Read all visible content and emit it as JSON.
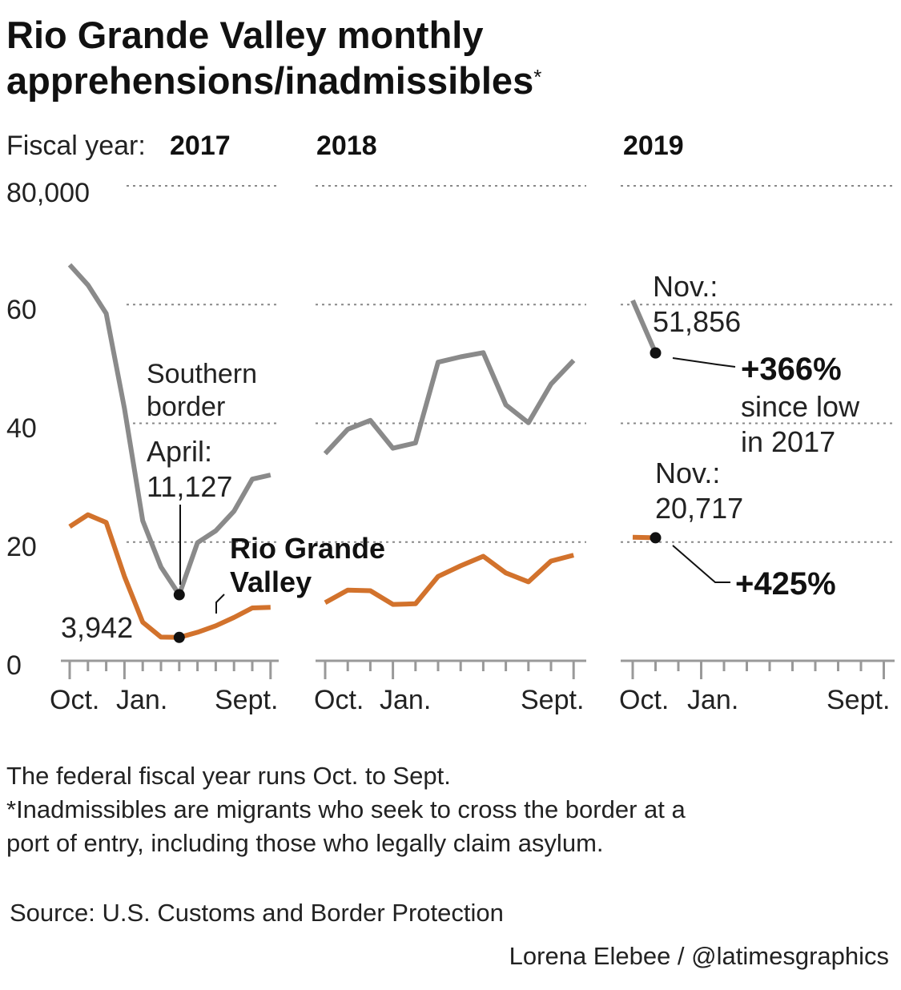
{
  "title": {
    "line1": "Rio Grande Valley monthly",
    "line2": "apprehensions/inadmissibles",
    "asterisk": "*"
  },
  "fiscal_year_label": "Fiscal year:",
  "chart_data": {
    "type": "line",
    "title": "Rio Grande Valley monthly apprehensions/inadmissibles",
    "ylim": [
      0,
      80000
    ],
    "y_ticks": [
      "80,000",
      "60",
      "40",
      "20",
      "0"
    ],
    "y_tick_values": [
      80000,
      60000,
      40000,
      20000,
      0
    ],
    "grid": true,
    "colors": {
      "southern_border": "#8a8a8a",
      "rio_grande_valley": "#d2722c",
      "dots": "#111111"
    },
    "panels": [
      {
        "year": "2017",
        "x_labels": [
          "Oct.",
          "Jan.",
          "Sept."
        ],
        "months": 12,
        "series": [
          {
            "name": "Southern border",
            "values": [
              66700,
              63300,
              58500,
              42500,
              23600,
              15800,
              11127,
              19900,
              21900,
              25200,
              30600,
              31300
            ]
          },
          {
            "name": "Rio Grande Valley",
            "values": [
              22600,
              24600,
              23300,
              14200,
              6500,
              4000,
              3942,
              4800,
              5900,
              7300,
              8900,
              9000
            ]
          }
        ]
      },
      {
        "year": "2018",
        "x_labels": [
          "Oct.",
          "Jan.",
          "Sept."
        ],
        "months": 12,
        "series": [
          {
            "name": "Southern border",
            "values": [
              34900,
              39000,
              40500,
              35800,
              36700,
              50300,
              51200,
              51900,
              43100,
              40100,
              46600,
              50600
            ]
          },
          {
            "name": "Rio Grande Valley",
            "values": [
              9800,
              11900,
              11800,
              9500,
              9600,
              14200,
              16000,
              17600,
              14800,
              13300,
              16800,
              17800
            ]
          }
        ]
      },
      {
        "year": "2019",
        "x_labels": [
          "Oct.",
          "Jan.",
          "Sept."
        ],
        "months": 12,
        "series": [
          {
            "name": "Southern border",
            "values": [
              60700,
              51856
            ]
          },
          {
            "name": "Rio Grande Valley",
            "values": [
              20800,
              20717
            ]
          }
        ]
      }
    ],
    "annotations": {
      "southern_label": [
        "Southern",
        "border"
      ],
      "april_label": "April:",
      "april_value": "11,127",
      "rgv_label": [
        "Rio Grande",
        "Valley"
      ],
      "rgv_low_value": "3,942",
      "nov_sb_label": "Nov.:",
      "nov_sb_value": "51,856",
      "nov_sb_change": "+366%",
      "since_low": [
        "since low",
        "in 2017"
      ],
      "nov_rgv_label": "Nov.:",
      "nov_rgv_value": "20,717",
      "nov_rgv_change": "+425%"
    }
  },
  "notes": {
    "line1": "The federal fiscal year runs Oct. to Sept.",
    "line2": "*Inadmissibles are migrants who seek to cross the border at a",
    "line3": "port of entry, including those who legally claim asylum."
  },
  "source": "Source: U.S. Customs and Border Protection",
  "credit": "Lorena Elebee / @latimesgraphics"
}
